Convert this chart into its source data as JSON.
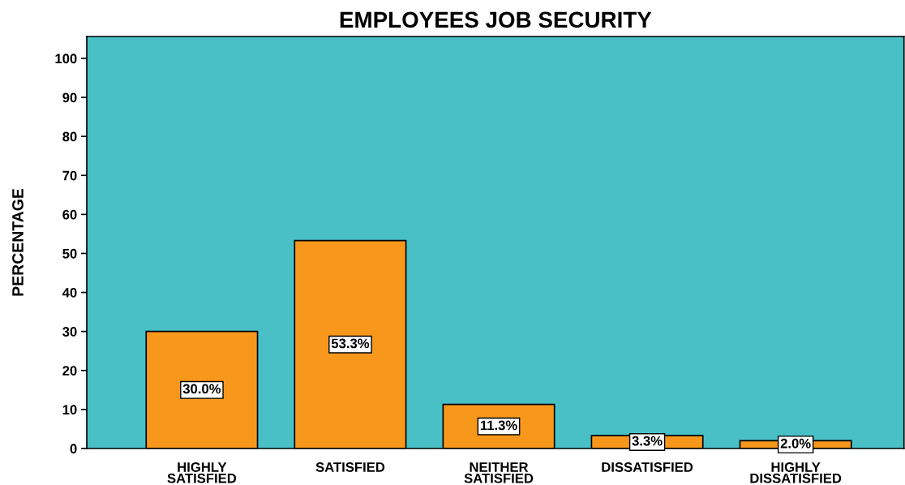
{
  "chart_data": {
    "type": "bar",
    "title": "EMPLOYEES JOB SECURITY",
    "ylabel": "PERCENTAGE",
    "categories": [
      "HIGHLY\nSATISFIED",
      "SATISFIED",
      "NEITHER\nSATISFIED",
      "DISSATISFIED",
      "HIGHLY\nDISSATISFIED"
    ],
    "values": [
      30.0,
      53.3,
      11.3,
      3.3,
      2.0
    ],
    "value_labels": [
      "30.0%",
      "53.3%",
      "11.3%",
      "3.3%",
      "2.0%"
    ],
    "color": "#f7981d",
    "ylim": [
      0,
      105.6
    ],
    "yticks": [
      0,
      10,
      20,
      30,
      40,
      50,
      60,
      70,
      80,
      90,
      100
    ],
    "grid": false
  }
}
